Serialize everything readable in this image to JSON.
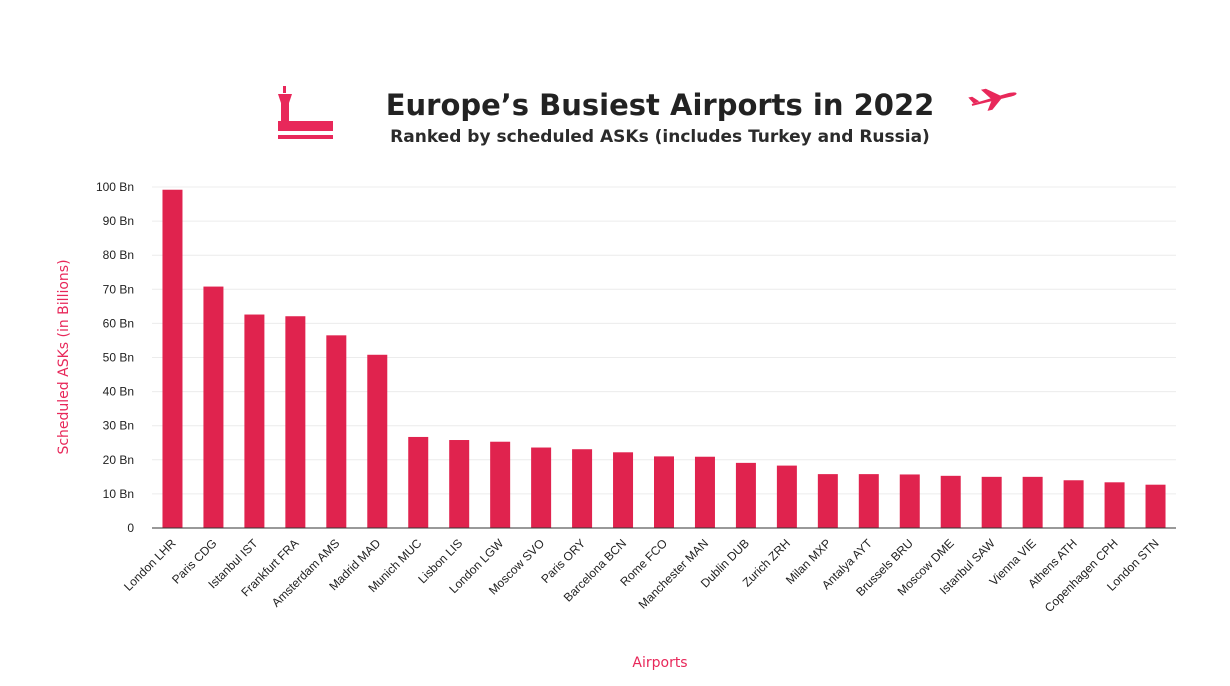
{
  "header": {
    "title": "Europe’s Busiest Airports in 2022",
    "subtitle": "Ranked by scheduled ASKs (includes Turkey and Russia)",
    "logo_icon": "control-tower-icon",
    "decor_icon": "airplane-icon"
  },
  "colors": {
    "bar": "#e0234e",
    "accent": "#e8285a",
    "title": "#222222"
  },
  "chart_data": {
    "type": "bar",
    "title": "Europe’s Busiest Airports in 2022",
    "subtitle": "Ranked by scheduled ASKs (includes Turkey and Russia)",
    "xlabel": "Airports",
    "ylabel": "Scheduled ASKs (in Billions)",
    "ylim": [
      0,
      100
    ],
    "yticks": [
      0,
      10,
      20,
      30,
      40,
      50,
      60,
      70,
      80,
      90,
      100
    ],
    "ytick_labels": [
      "0",
      "10 Bn",
      "20 Bn",
      "30 Bn",
      "40 Bn",
      "50 Bn",
      "60 Bn",
      "70 Bn",
      "80 Bn",
      "90 Bn",
      "100 Bn"
    ],
    "grid": true,
    "legend": "none",
    "categories": [
      "London LHR",
      "Paris CDG",
      "Istanbul IST",
      "Frankfurt FRA",
      "Amsterdam AMS",
      "Madrid MAD",
      "Munich MUC",
      "Lisbon LIS",
      "London LGW",
      "Moscow SVO",
      "Paris ORY",
      "Barcelona BCN",
      "Rome FCO",
      "Manchester MAN",
      "Dublin DUB",
      "Zurich ZRH",
      "Milan MXP",
      "Antalya AYT",
      "Brussels BRU",
      "Moscow DME",
      "Istanbul SAW",
      "Vienna VIE",
      "Athens ATH",
      "Copenhagen CPH",
      "London STN"
    ],
    "values": [
      99.2,
      70.8,
      62.6,
      62.1,
      56.5,
      50.8,
      26.7,
      25.8,
      25.3,
      23.6,
      23.1,
      22.2,
      21.0,
      20.9,
      19.1,
      18.3,
      15.8,
      15.8,
      15.7,
      15.3,
      15.0,
      15.0,
      14.0,
      13.4,
      12.7
    ]
  }
}
